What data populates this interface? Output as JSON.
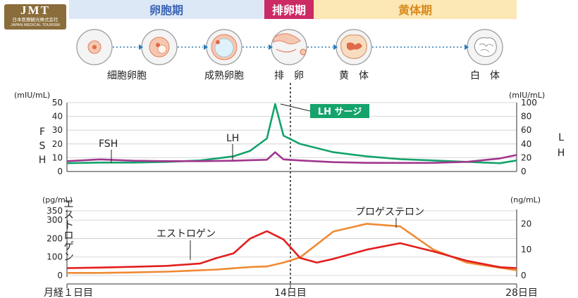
{
  "logo": {
    "mark": "JMT",
    "line1": "日本医療観光株式会社",
    "line2": "JAPAN MEDICAL TOURISM"
  },
  "phases": [
    {
      "label": "卵胞期",
      "bg": "#dde8f6",
      "fg": "#3a64b5"
    },
    {
      "label": "排卵期",
      "bg": "#cc2a64",
      "fg": "#ffffff"
    },
    {
      "label": "黄体期",
      "bg": "#fbe8b5",
      "fg": "#d98a1c"
    }
  ],
  "stages": [
    "細胞卵胞",
    "成熟卵胞",
    "排　卵",
    "黄　体",
    "白　体"
  ],
  "icons": [
    "follicle-small-icon",
    "follicle-mature-icon",
    "follicle-large-icon",
    "ovulation-icon",
    "corpus-luteum-icon",
    "corpus-albicans-icon"
  ],
  "top_chart": {
    "left_unit": "(mIU/mL)",
    "right_unit": "(mIU/mL)",
    "left_axis_label": "FSH",
    "right_axis_label": "LH",
    "left_ticks": [
      "50",
      "40",
      "30",
      "20",
      "10",
      "0"
    ],
    "right_ticks": [
      "100",
      "80",
      "60",
      "40",
      "20",
      "0"
    ],
    "fsh_label": "FSH",
    "lh_label": "LH",
    "surge_label": "LH サージ"
  },
  "bottom_chart": {
    "left_unit": "(pg/mL)",
    "right_unit": "(ng/mL)",
    "left_axis_label": "エストロゲン",
    "right_axis_label": "プロゲステロン",
    "left_ticks": [
      "350",
      "300",
      "200",
      "100",
      "0"
    ],
    "right_ticks": [
      "20",
      "10",
      "0"
    ],
    "estrogen_label": "エストロゲン",
    "progesterone_label": "プロゲステロン"
  },
  "x_labels": {
    "start": "月経１日目",
    "mid": "14日目",
    "end": "28日目"
  },
  "colors": {
    "fsh": "#a0368e",
    "lh": "#14a36b",
    "estrogen": "#e31e1e",
    "progesterone": "#ef8a33",
    "axis": "#333333",
    "grid": "#cccccc"
  },
  "chart_data": [
    {
      "type": "line",
      "x": [
        1,
        3,
        5,
        7,
        9,
        11,
        12,
        13,
        13.5,
        14,
        15,
        17,
        19,
        21,
        23,
        25,
        27,
        28
      ],
      "series": [
        {
          "name": "FSH",
          "axis": "left",
          "values": [
            7.5,
            8.8,
            7.8,
            7.5,
            7.5,
            7.8,
            8.2,
            8.5,
            14,
            8.8,
            8,
            6.8,
            6.3,
            6.2,
            6.3,
            7,
            9.5,
            12
          ]
        },
        {
          "name": "LH",
          "axis": "right",
          "values": [
            12,
            13,
            13,
            14,
            16,
            22,
            30,
            48,
            98,
            52,
            40,
            28,
            22,
            18,
            16,
            14,
            12,
            16
          ]
        }
      ],
      "ylim_left": [
        0,
        50
      ],
      "ylim_right": [
        0,
        100
      ]
    },
    {
      "type": "line",
      "x": [
        1,
        3,
        5,
        7,
        9,
        10,
        11,
        12,
        13,
        14,
        15,
        16,
        17,
        19,
        21,
        23,
        25,
        27,
        28
      ],
      "series": [
        {
          "name": "エストロゲン",
          "axis": "left",
          "values": [
            40,
            43,
            47,
            52,
            65,
            95,
            120,
            200,
            240,
            195,
            95,
            70,
            90,
            140,
            175,
            130,
            80,
            45,
            40
          ]
        },
        {
          "name": "プロゲステロン",
          "axis": "right",
          "values": [
            1,
            1,
            1.2,
            1.5,
            2,
            2.3,
            2.8,
            3.3,
            3.5,
            5,
            7,
            12,
            17,
            20,
            19,
            10,
            5,
            3,
            2
          ]
        }
      ],
      "ylim_left": [
        0,
        350
      ],
      "ylim_right": [
        0,
        25
      ]
    }
  ]
}
